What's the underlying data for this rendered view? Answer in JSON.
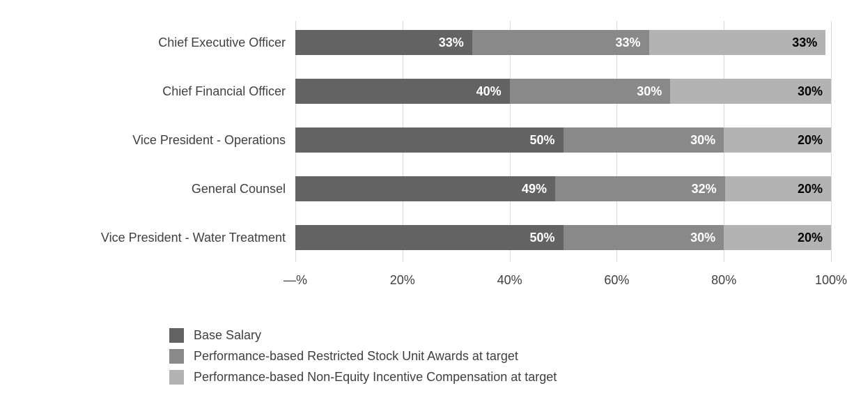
{
  "chart_data": {
    "type": "bar",
    "orientation": "horizontal",
    "stacked": true,
    "title": "",
    "categories": [
      "Chief Executive Officer",
      "Chief Financial Officer",
      "Vice President - Operations",
      "General Counsel",
      "Vice President - Water Treatment"
    ],
    "series": [
      {
        "name": "Base Salary",
        "color": "#636363",
        "label_color": "#ffffff",
        "values": [
          33,
          40,
          50,
          49,
          50
        ]
      },
      {
        "name": "Performance-based Restricted Stock Unit Awards at target",
        "color": "#898989",
        "label_color": "#ffffff",
        "values": [
          33,
          30,
          30,
          32,
          30
        ]
      },
      {
        "name": "Performance-based Non-Equity Incentive Compensation at target",
        "color": "#b3b3b3",
        "label_color": "#000000",
        "values": [
          33,
          30,
          20,
          20,
          20
        ]
      }
    ],
    "value_suffix": "%",
    "x_axis": {
      "min": 0,
      "max": 100,
      "tick_labels": [
        "—%",
        "20%",
        "40%",
        "60%",
        "80%",
        "100%"
      ],
      "tick_values": [
        0,
        20,
        40,
        60,
        80,
        100
      ]
    },
    "grid": true,
    "gridline_color": "#d9d9d9",
    "legend_position": "bottom-left"
  }
}
